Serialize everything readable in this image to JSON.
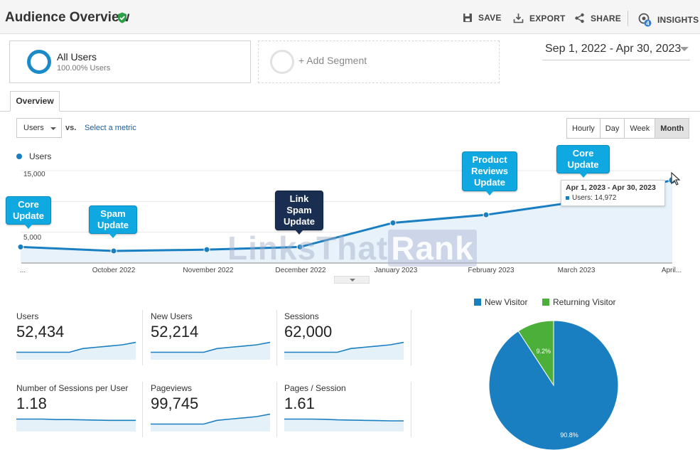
{
  "header": {
    "title": "Audience Overview",
    "save": "SAVE",
    "export": "EXPORT",
    "share": "SHARE",
    "insights": "INSIGHTS",
    "insights_badge": "4"
  },
  "segments": {
    "all_users_name": "All Users",
    "all_users_pct": "100.00% Users",
    "add_segment": "+ Add Segment"
  },
  "date_range": "Sep 1, 2022 - Apr 30, 2023",
  "tabs": {
    "overview": "Overview"
  },
  "controls": {
    "metric": "Users",
    "vs": "vs.",
    "select_metric": "Select a metric",
    "granularity": [
      "Hourly",
      "Day",
      "Week",
      "Month"
    ],
    "active_granularity": "Month"
  },
  "chart": {
    "legend": "Users",
    "y_labels": [
      "15,000",
      "5,000"
    ],
    "x_labels": [
      "...",
      "October 2022",
      "November 2022",
      "December 2022",
      "January 2023",
      "February 2023",
      "March 2023",
      "April..."
    ],
    "callouts": [
      {
        "text": "Core Update"
      },
      {
        "text": "Spam Update"
      },
      {
        "text": "Link Spam Update"
      },
      {
        "text": "Product Reviews Update"
      },
      {
        "text": "Core Update"
      }
    ],
    "tooltip": {
      "range": "Apr 1, 2023 - Apr 30, 2023",
      "value_label": "Users: 14,972"
    },
    "watermark_left": "LinksThat",
    "watermark_right": "Rank"
  },
  "chart_data": {
    "type": "area",
    "categories": [
      "Sep 2022",
      "Oct 2022",
      "Nov 2022",
      "Dec 2022",
      "Jan 2023",
      "Feb 2023",
      "Mar 2023",
      "Apr 2023"
    ],
    "series": [
      {
        "name": "Users",
        "values": [
          5000,
          4400,
          4600,
          5000,
          8600,
          9800,
          11800,
          14972
        ]
      }
    ],
    "ylim": [
      2600,
      16400
    ],
    "color": "#1a7fc1"
  },
  "metrics": [
    {
      "label": "Users",
      "value": "52,434"
    },
    {
      "label": "New Users",
      "value": "52,214"
    },
    {
      "label": "Sessions",
      "value": "62,000"
    },
    {
      "label": "Number of Sessions per User",
      "value": "1.18"
    },
    {
      "label": "Pageviews",
      "value": "99,745"
    },
    {
      "label": "Pages / Session",
      "value": "1.61"
    }
  ],
  "sparklines": [
    [
      3,
      3,
      3,
      3,
      3,
      4.5,
      5,
      5.5,
      6,
      7
    ],
    [
      3,
      3,
      3,
      3,
      3,
      4.5,
      5,
      5.5,
      6,
      7
    ],
    [
      3,
      3,
      3,
      3,
      3,
      4.5,
      5,
      5.5,
      6,
      7
    ],
    [
      5,
      5,
      5,
      4.8,
      4.8,
      4.7,
      4.6,
      4.5,
      4.5,
      4.5
    ],
    [
      3,
      3,
      3,
      3,
      3,
      4.5,
      5,
      5.5,
      6,
      7
    ],
    [
      5,
      5,
      5,
      4.9,
      4.7,
      4.6,
      4.5,
      4.4,
      4.3,
      4.3
    ]
  ],
  "pie": {
    "legend": [
      {
        "label": "New Visitor",
        "color": "#1a7fc1"
      },
      {
        "label": "Returning Visitor",
        "color": "#4caf3a"
      }
    ],
    "slices": [
      {
        "label": "New Visitor",
        "value": 90.8,
        "text": "90.8%",
        "color": "#1a7fc1"
      },
      {
        "label": "Returning Visitor",
        "value": 9.2,
        "text": "9.2%",
        "color": "#4caf3a"
      }
    ]
  }
}
